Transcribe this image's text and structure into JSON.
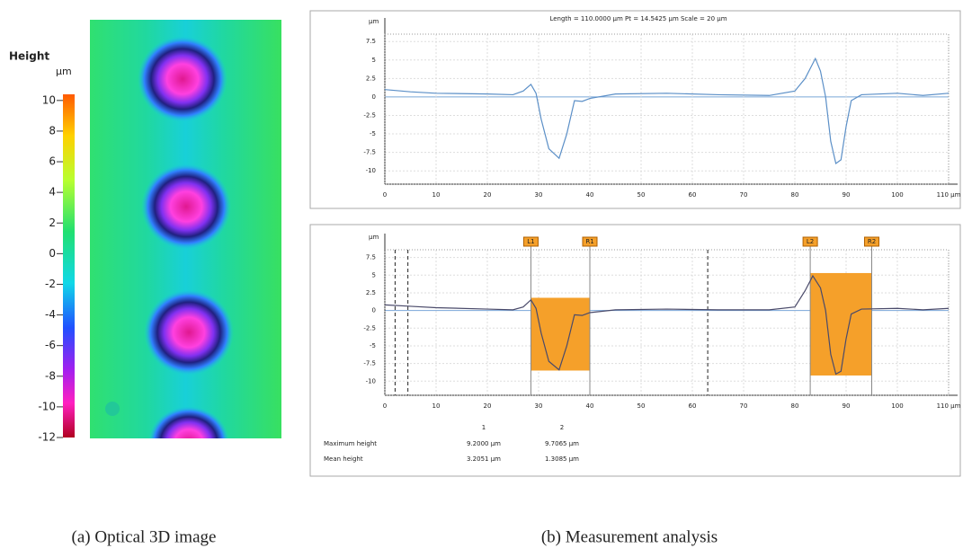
{
  "figure_a": {
    "caption": "(a) Optical 3D image",
    "colorbar": {
      "title": "Height",
      "unit": "µm",
      "lim": [
        -12,
        10.4
      ],
      "ticks": [
        10,
        8,
        6,
        4,
        2,
        0,
        -2,
        -4,
        -6,
        -8,
        -10,
        -12
      ]
    }
  },
  "figure_b": {
    "caption": "(b) Measurement analysis",
    "profile": {
      "type": "line",
      "header": "Length = 110.0000 µm  Pt = 14.5425 µm  Scale = 20 µm",
      "y_unit": "µm",
      "color": "#5b8fc7",
      "x": [
        0,
        5,
        10,
        20,
        25,
        27,
        28.5,
        29.5,
        30.5,
        32,
        34,
        35.5,
        37,
        38.5,
        40,
        45,
        55,
        65,
        75,
        80,
        82,
        84,
        85,
        86,
        87,
        88,
        89,
        90,
        91,
        93,
        100,
        105,
        110
      ],
      "values": [
        1,
        0.7,
        0.5,
        0.4,
        0.3,
        0.8,
        1.7,
        0.5,
        -3,
        -7,
        -8.3,
        -5,
        -0.5,
        -0.6,
        -0.2,
        0.4,
        0.5,
        0.3,
        0.2,
        0.8,
        2.5,
        5.2,
        3.5,
        0,
        -6,
        -9,
        -8.5,
        -4,
        -0.5,
        0.3,
        0.5,
        0.2,
        0.5
      ],
      "xlim": [
        0,
        110
      ],
      "ylim": [
        -11.8,
        8.5
      ],
      "xticks": [
        0,
        10,
        20,
        30,
        40,
        50,
        60,
        70,
        80,
        90,
        100,
        {
          "value": 110,
          "label": "110 µm"
        }
      ],
      "yticks": [
        7.5,
        5,
        2.5,
        0,
        -2.5,
        -5,
        -7.5,
        -10
      ]
    },
    "analysis": {
      "type": "line",
      "y_unit": "µm",
      "color": "#4a4a6a",
      "x": [
        0,
        5,
        10,
        20,
        25,
        27,
        28.5,
        29.5,
        30.5,
        32,
        34,
        35.5,
        37,
        38.5,
        40,
        45,
        55,
        65,
        75,
        80,
        82,
        83.5,
        85,
        86,
        87,
        88,
        89,
        90,
        91,
        93,
        100,
        105,
        110
      ],
      "values": [
        0.8,
        0.6,
        0.4,
        0.2,
        0.1,
        0.5,
        1.5,
        0.3,
        -3.2,
        -7.2,
        -8.4,
        -5,
        -0.6,
        -0.7,
        -0.3,
        0.1,
        0.2,
        0.1,
        0.1,
        0.5,
        2.8,
        4.9,
        3.2,
        0,
        -6.2,
        -9,
        -8.6,
        -4,
        -0.5,
        0.2,
        0.3,
        0.1,
        0.3
      ],
      "xlim": [
        0,
        110
      ],
      "ylim": [
        -12,
        8.6
      ],
      "xticks": [
        0,
        10,
        20,
        30,
        40,
        50,
        60,
        70,
        80,
        90,
        100,
        {
          "value": 110,
          "label": "110 µm"
        }
      ],
      "yticks": [
        7.5,
        5,
        2.5,
        0,
        -2.5,
        -5,
        -7.5,
        -10
      ],
      "cursors": [
        2,
        4.5,
        63
      ],
      "regions": [
        {
          "left_label": "L1",
          "right_label": "R1",
          "x0": 28.5,
          "x1": 40,
          "top": 1.8,
          "bottom": -8.5
        },
        {
          "left_label": "L2",
          "right_label": "R2",
          "x0": 83,
          "x1": 95,
          "top": 5.3,
          "bottom": -9.2
        }
      ],
      "table": {
        "columns": [
          "1",
          "2"
        ],
        "rows": [
          [
            "Maximum height",
            "9.2000 µm",
            "9.7065 µm"
          ],
          [
            "Mean height",
            "3.2051 µm",
            "1.3085 µm"
          ]
        ]
      }
    }
  }
}
